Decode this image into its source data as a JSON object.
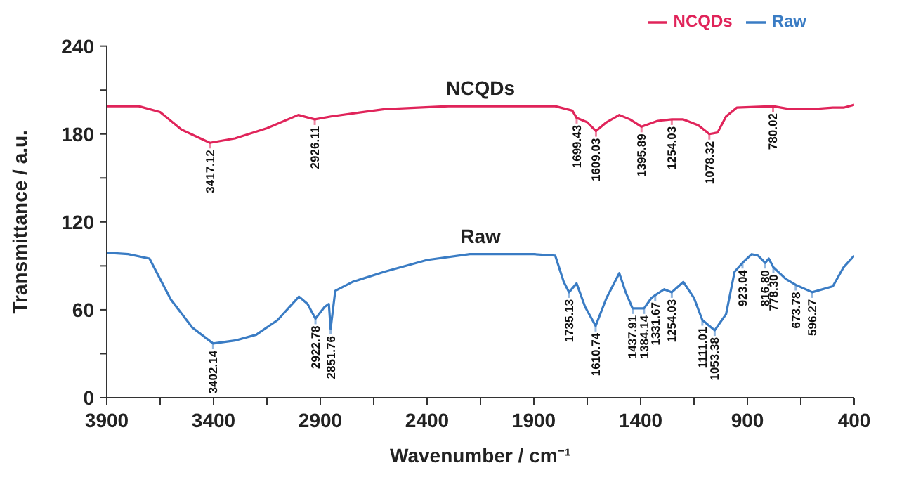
{
  "chart_data": {
    "type": "line",
    "xlabel": "Wavenumber / cm⁻¹",
    "ylabel": "Transmittance / a.u.",
    "xlim": [
      3900,
      400
    ],
    "ylim": [
      0,
      240
    ],
    "xticks": [
      3900,
      {
        "value": 3650,
        "label": null
      },
      3400,
      {
        "value": 3150,
        "label": null
      },
      2900,
      {
        "value": 2650,
        "label": null
      },
      2400,
      {
        "value": 2150,
        "label": null
      },
      1900,
      {
        "value": 1650,
        "label": null
      },
      1400,
      {
        "value": 1150,
        "label": null
      },
      900,
      {
        "value": 650,
        "label": null
      },
      400
    ],
    "yticks": [
      0,
      {
        "value": 30,
        "label": null
      },
      60,
      {
        "value": 90,
        "label": null
      },
      120,
      {
        "value": 150,
        "label": null
      },
      180,
      {
        "value": 210,
        "label": null
      },
      240
    ],
    "legend": "top right",
    "grid": false,
    "marker": "none",
    "line_style": "solid",
    "series": [
      {
        "name": "Raw",
        "color": "#3a7cc4",
        "x": [
          3900,
          3800,
          3700,
          3600,
          3500,
          3402.14,
          3300,
          3200,
          3100,
          3000,
          2960,
          2922.78,
          2880,
          2860,
          2851.76,
          2830,
          2750,
          2600,
          2400,
          2200,
          2000,
          1900,
          1800,
          1760,
          1735.13,
          1700,
          1660,
          1610.74,
          1560,
          1500,
          1470,
          1437.91,
          1384.14,
          1350,
          1331.67,
          1290,
          1254.03,
          1200,
          1150,
          1111.01,
          1053.38,
          1000,
          960,
          923.04,
          880,
          850,
          816.8,
          800,
          778.3,
          720,
          673.78,
          596.27,
          500,
          450,
          400
        ],
        "values": [
          99,
          98,
          95,
          67,
          48,
          37,
          39,
          43,
          53,
          69,
          64,
          54,
          62,
          64,
          47,
          73,
          79,
          86,
          94,
          98,
          98,
          98,
          97,
          79,
          72,
          78,
          62,
          49,
          68,
          85,
          72,
          61,
          61,
          68,
          70,
          74,
          72,
          79,
          68,
          53,
          46,
          57,
          86,
          92,
          98,
          97,
          92,
          95,
          89,
          81,
          77,
          72,
          76,
          89,
          97
        ]
      },
      {
        "name": "NCQDs",
        "color": "#e0245a",
        "x": [
          3900,
          3750,
          3650,
          3550,
          3417.12,
          3300,
          3150,
          3003,
          2926.11,
          2850,
          2600,
          2300,
          2000,
          1800,
          1720,
          1699.43,
          1650,
          1609.03,
          1560,
          1500,
          1450,
          1395.89,
          1320,
          1254.03,
          1200,
          1130,
          1078.32,
          1040,
          1000,
          950,
          780.02,
          700,
          600,
          500,
          450,
          400
        ],
        "values": [
          199,
          199,
          195,
          183,
          174,
          177,
          184,
          193,
          190,
          192,
          197,
          199,
          199,
          199,
          196,
          191,
          188,
          182,
          188,
          193,
          190,
          185,
          189,
          190,
          190,
          186,
          180,
          181,
          192,
          198,
          199,
          197,
          197,
          198,
          198,
          200
        ]
      }
    ],
    "annotations": [
      {
        "text": "3417.12",
        "x": 3417.12,
        "y": 174
      },
      {
        "text": "2926.11",
        "x": 2926.11,
        "y": 190
      },
      {
        "text": "1699.43",
        "x": 1699.43,
        "y": 191
      },
      {
        "text": "1609.03",
        "x": 1609.03,
        "y": 182
      },
      {
        "text": "1395.89",
        "x": 1395.89,
        "y": 185
      },
      {
        "text": "1254.03",
        "x": 1254.03,
        "y": 190
      },
      {
        "text": "1078.32",
        "x": 1078.32,
        "y": 180
      },
      {
        "text": "780.02",
        "x": 780.02,
        "y": 199
      },
      {
        "text": "3402.14",
        "x": 3402.14,
        "y": 37
      },
      {
        "text": "2922.78",
        "x": 2922.78,
        "y": 54
      },
      {
        "text": "2851.76",
        "x": 2851.76,
        "y": 47
      },
      {
        "text": "1735.13",
        "x": 1735.13,
        "y": 72
      },
      {
        "text": "1610.74",
        "x": 1610.74,
        "y": 49
      },
      {
        "text": "1437.91",
        "x": 1437.91,
        "y": 61
      },
      {
        "text": "1384.14",
        "x": 1384.14,
        "y": 61
      },
      {
        "text": "1331.67",
        "x": 1331.67,
        "y": 70
      },
      {
        "text": "1254.03",
        "x": 1254.03,
        "y": 72
      },
      {
        "text": "1111.01",
        "x": 1111.01,
        "y": 53
      },
      {
        "text": "1053.38",
        "x": 1053.38,
        "y": 46
      },
      {
        "text": "923.04",
        "x": 923.04,
        "y": 92
      },
      {
        "text": "816.80",
        "x": 816.8,
        "y": 92
      },
      {
        "text": "778.30",
        "x": 778.3,
        "y": 89
      },
      {
        "text": "673.78",
        "x": 673.78,
        "y": 77
      },
      {
        "text": "596.27",
        "x": 596.27,
        "y": 72
      }
    ]
  }
}
